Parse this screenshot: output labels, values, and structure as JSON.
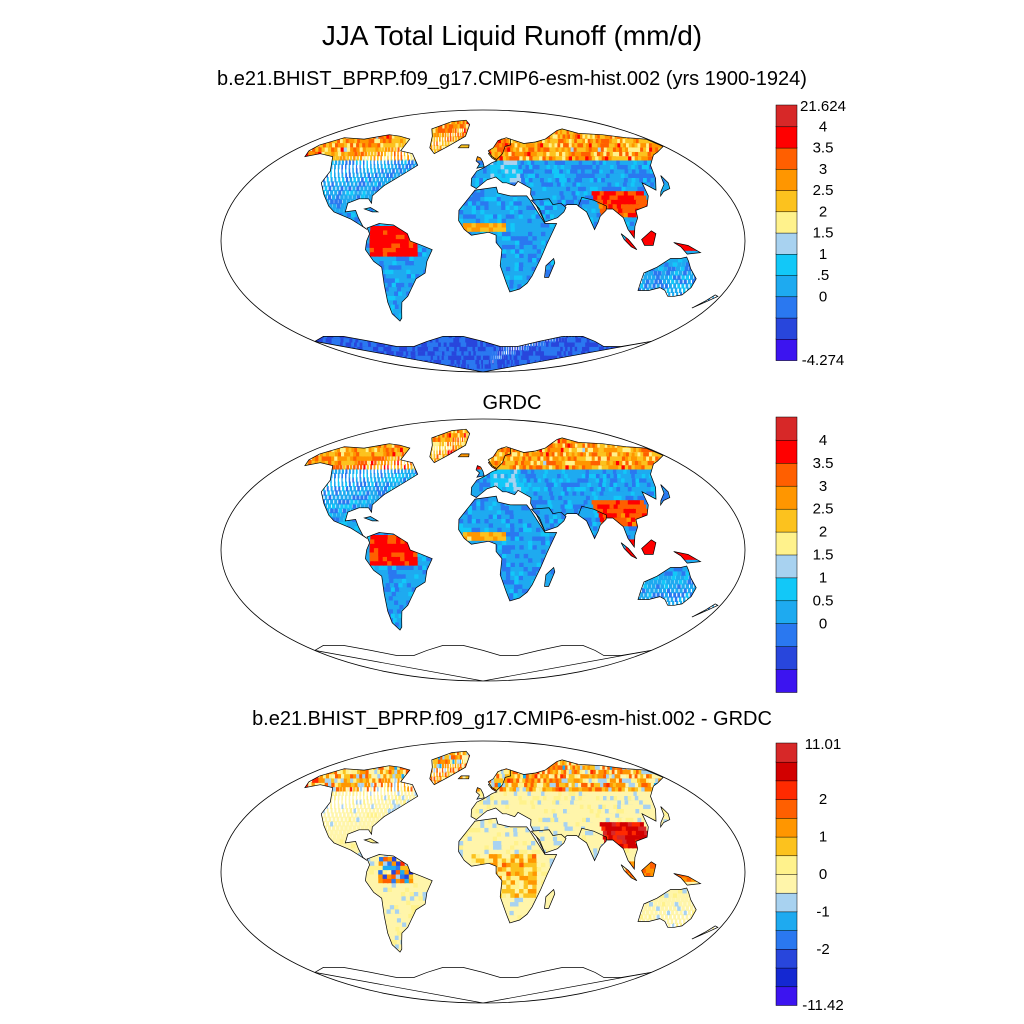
{
  "title": "JJA Total Liquid Runoff (mm/d)",
  "colors": {
    "runoff": [
      "#3c14f0",
      "#2846dc",
      "#2a78f0",
      "#1eaaf0",
      "#12c8f8",
      "#a8d2f0",
      "#fff28c",
      "#fcc21e",
      "#ff9600",
      "#ff5f00",
      "#ff0000",
      "#d72828"
    ],
    "diff": [
      "#3c14f0",
      "#1428d2",
      "#2846dc",
      "#2a78f0",
      "#1eaaf0",
      "#a8d2f0",
      "#fff5aa",
      "#fff28c",
      "#fcc21e",
      "#ff9600",
      "#ff5f00",
      "#ff2a00",
      "#d20000",
      "#d72828"
    ]
  },
  "panels": [
    {
      "title": "b.e21.BHIST_BPRP.f09_g17.CMIP6-esm-hist.002 (yrs 1900-1924)",
      "scheme": "runoff",
      "antarctica": true,
      "colorbar": {
        "labels": [
          "21.624",
          "4",
          "3.5",
          "3",
          "2.5",
          "2",
          "1.5",
          "1",
          ".5",
          "0",
          "-4.274"
        ],
        "mode": "minmax"
      }
    },
    {
      "title": "GRDC",
      "scheme": "runoff",
      "antarctica": false,
      "colorbar": {
        "labels": [
          "4",
          "3.5",
          "3",
          "2.5",
          "2",
          "1.5",
          "1",
          "0.5",
          "0"
        ],
        "mode": "inner"
      }
    },
    {
      "title": "b.e21.BHIST_BPRP.f09_g17.CMIP6-esm-hist.002 - GRDC",
      "scheme": "diff",
      "antarctica": false,
      "colorbar": {
        "labels": [
          "11.01",
          "2",
          "1",
          "0",
          "-1",
          "-2",
          "-11.42"
        ],
        "mode": "sparse"
      }
    }
  ]
}
